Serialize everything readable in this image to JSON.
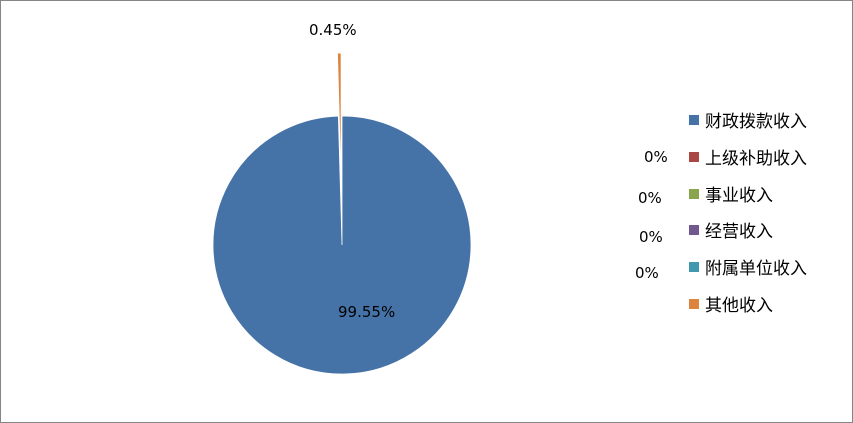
{
  "chart_data": {
    "type": "pie",
    "title": "",
    "categories": [
      "财政拨款收入",
      "上级补助收入",
      "事业收入",
      "经营收入",
      "附属单位收入",
      "其他收入"
    ],
    "values": [
      99.55,
      0,
      0,
      0,
      0,
      0.45
    ],
    "data_labels": [
      "99.55%",
      "0%",
      "0%",
      "0%",
      "0%",
      "0.45%"
    ],
    "colors": [
      "#4572A7",
      "#AA4643",
      "#89A54E",
      "#71588F",
      "#4198AF",
      "#DB843D"
    ],
    "exploded": [
      "其他收入"
    ],
    "legend_position": "right"
  }
}
